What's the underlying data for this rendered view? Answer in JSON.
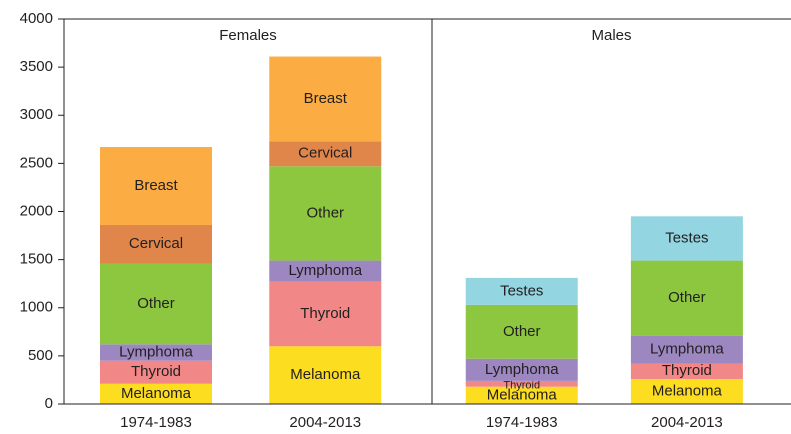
{
  "chart_data": {
    "type": "stacked-bar",
    "ylim": [
      0,
      4000
    ],
    "yticks": [
      0,
      500,
      1000,
      1500,
      2000,
      2500,
      3000,
      3500,
      4000
    ],
    "panels": [
      {
        "title": "Females",
        "categories": [
          "1974-1983",
          "2004-2013"
        ],
        "series": [
          {
            "name": "Melanoma",
            "color": "#fcdd1f",
            "values": [
              210,
              600
            ]
          },
          {
            "name": "Thyroid",
            "color": "#f28787",
            "values": [
              240,
              670
            ]
          },
          {
            "name": "Lymphoma",
            "color": "#9d87c1",
            "values": [
              170,
              220
            ]
          },
          {
            "name": "Other",
            "color": "#8dc63f",
            "values": [
              840,
              980
            ]
          },
          {
            "name": "Cervical",
            "color": "#e1864b",
            "values": [
              400,
              260
            ]
          },
          {
            "name": "Breast",
            "color": "#fbad43",
            "values": [
              810,
              880
            ]
          }
        ]
      },
      {
        "title": "Males",
        "categories": [
          "1974-1983",
          "2004-2013"
        ],
        "series": [
          {
            "name": "Melanoma",
            "color": "#fcdd1f",
            "values": [
              180,
              260
            ]
          },
          {
            "name": "Thyroid",
            "color": "#f28787",
            "values": [
              60,
              160
            ]
          },
          {
            "name": "Lymphoma",
            "color": "#9d87c1",
            "values": [
              230,
              290
            ]
          },
          {
            "name": "Other",
            "color": "#8dc63f",
            "values": [
              560,
              780
            ]
          },
          {
            "name": "Testes",
            "color": "#93d5e1",
            "values": [
              280,
              460
            ]
          }
        ]
      }
    ]
  }
}
